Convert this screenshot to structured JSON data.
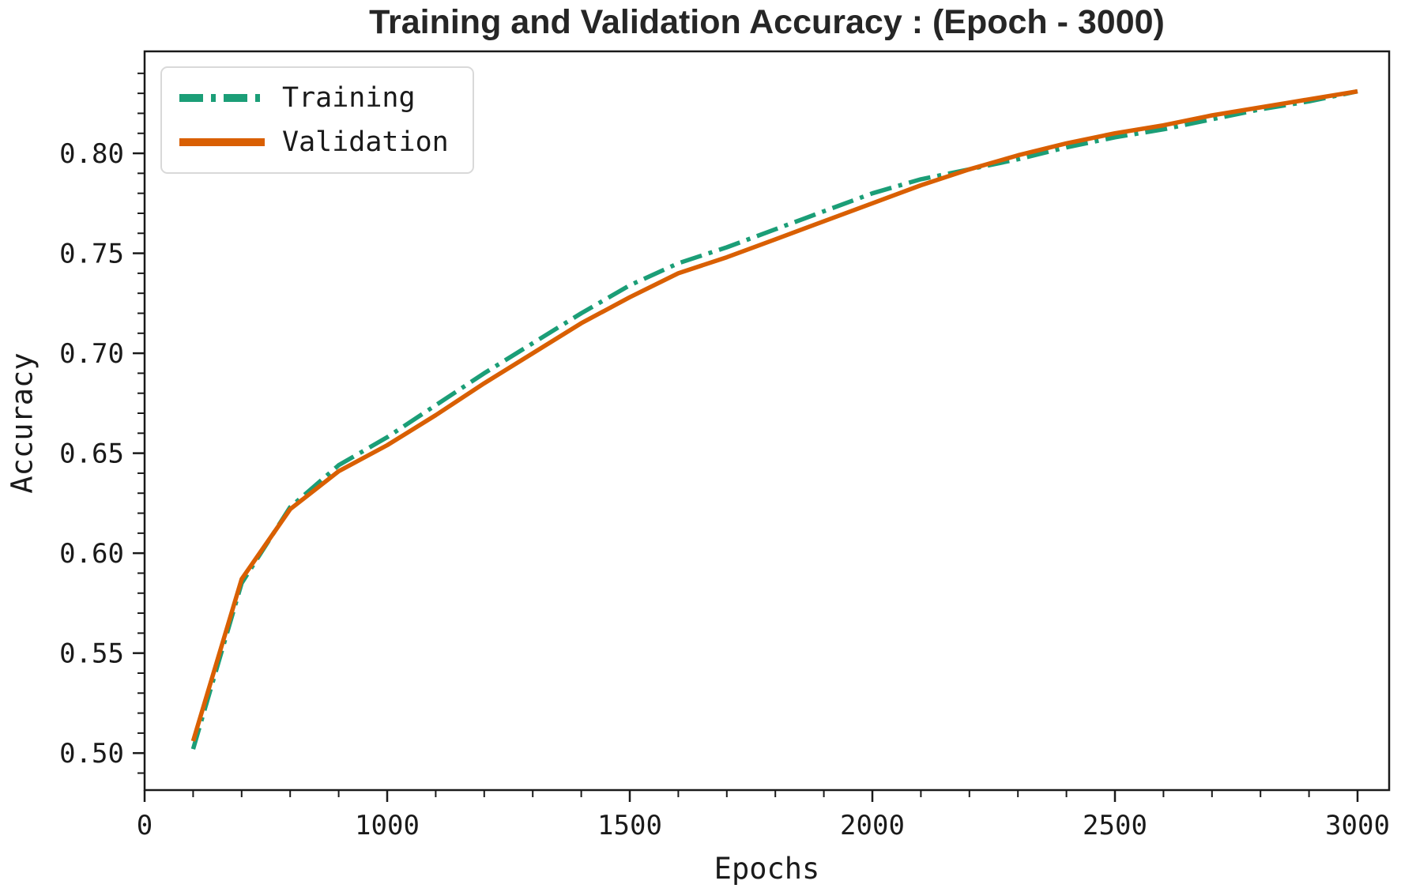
{
  "chart_data": {
    "type": "line",
    "title": "Training and Validation Accuracy : (Epoch - 3000)",
    "xlabel": "Epochs",
    "ylabel": "Accuracy",
    "x_tick_labels": [
      "0",
      "1000",
      "1500",
      "2000",
      "2500",
      "3000"
    ],
    "x_ticks_equally_spaced": true,
    "x_minor_divisions_per_major": 5,
    "y_tick_labels": [
      "0.50",
      "0.55",
      "0.60",
      "0.65",
      "0.70",
      "0.75",
      "0.80"
    ],
    "y_minor_step": 0.01,
    "ylim": [
      0.4815,
      0.851
    ],
    "grid": false,
    "legend_position": "upper left",
    "epochs": [
      200,
      400,
      600,
      800,
      1000,
      1100,
      1200,
      1300,
      1400,
      1500,
      1600,
      1700,
      1800,
      1900,
      2000,
      2100,
      2200,
      2300,
      2400,
      2500,
      2600,
      2700,
      2800,
      2900,
      3000
    ],
    "series": [
      {
        "name": "Training",
        "color": "#1b9e77",
        "line_style": "dashdot",
        "values": [
          0.502,
          0.585,
          0.623,
          0.644,
          0.658,
          0.674,
          0.69,
          0.705,
          0.72,
          0.734,
          0.745,
          0.753,
          0.762,
          0.771,
          0.78,
          0.787,
          0.792,
          0.797,
          0.803,
          0.808,
          0.812,
          0.817,
          0.822,
          0.826,
          0.831
        ]
      },
      {
        "name": "Validation",
        "color": "#d95f02",
        "line_style": "solid",
        "values": [
          0.506,
          0.587,
          0.622,
          0.641,
          0.654,
          0.669,
          0.685,
          0.7,
          0.715,
          0.728,
          0.74,
          0.748,
          0.757,
          0.766,
          0.775,
          0.784,
          0.792,
          0.799,
          0.805,
          0.81,
          0.814,
          0.819,
          0.823,
          0.827,
          0.831
        ]
      }
    ]
  }
}
